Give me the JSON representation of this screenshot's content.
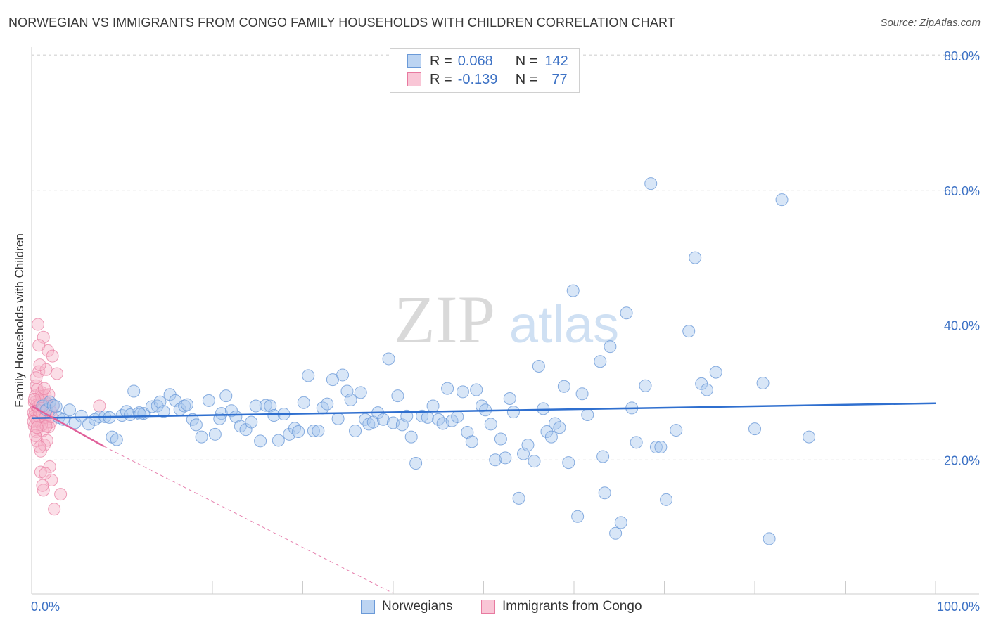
{
  "title": "NORWEGIAN VS IMMIGRANTS FROM CONGO FAMILY HOUSEHOLDS WITH CHILDREN CORRELATION CHART",
  "source": "Source: ZipAtlas.com",
  "watermark": {
    "zip": "ZIP",
    "atlas": "atlas"
  },
  "legend": {
    "rows": [
      {
        "r_label": "R =",
        "r_value": "0.068",
        "n_label": "N =",
        "n_value": "142"
      },
      {
        "r_label": "R =",
        "r_value": "-0.139",
        "n_label": "N =",
        "n_value": "77"
      }
    ]
  },
  "bottom_legend": [
    "Norwegians",
    "Immigrants from Congo"
  ],
  "colors": {
    "blue_fill": "#a9c8ee",
    "blue_stroke": "#6b9ad8",
    "blue_line": "#2f6fcf",
    "pink_fill": "#f6b6ca",
    "pink_stroke": "#e87aa0",
    "pink_line": "#e0609a",
    "axis_text": "#3d72c5",
    "grid": "#dddddd"
  },
  "chart_data": {
    "type": "scatter",
    "title": "NORWEGIAN VS IMMIGRANTS FROM CONGO FAMILY HOUSEHOLDS WITH CHILDREN CORRELATION CHART",
    "xlabel": "",
    "ylabel": "Family Households with Children",
    "xlim": [
      0,
      100
    ],
    "ylim": [
      0,
      80
    ],
    "x_tick_labels": [
      "0.0%",
      "100.0%"
    ],
    "y_ticks": [
      20,
      40,
      60,
      80
    ],
    "y_tick_labels": [
      "20.0%",
      "40.0%",
      "60.0%",
      "80.0%"
    ],
    "grid": true,
    "legend_position": "top-center",
    "series": [
      {
        "name": "Norwegians",
        "r": 0.068,
        "n": 142,
        "trend": {
          "x": [
            0,
            100
          ],
          "y": [
            26.2,
            28.4
          ]
        },
        "points": [
          [
            1.2,
            28.0
          ],
          [
            1.6,
            27.4
          ],
          [
            2.0,
            28.6
          ],
          [
            2.4,
            28.1
          ],
          [
            2.7,
            27.9
          ],
          [
            3.0,
            26.3
          ],
          [
            3.5,
            26.0
          ],
          [
            4.2,
            27.4
          ],
          [
            4.8,
            25.5
          ],
          [
            5.5,
            26.5
          ],
          [
            6.3,
            25.3
          ],
          [
            7.0,
            26.0
          ],
          [
            7.5,
            26.4
          ],
          [
            8.1,
            26.4
          ],
          [
            8.6,
            26.3
          ],
          [
            8.9,
            23.4
          ],
          [
            9.4,
            23.0
          ],
          [
            10.0,
            26.6
          ],
          [
            10.5,
            27.2
          ],
          [
            10.9,
            26.7
          ],
          [
            11.3,
            30.2
          ],
          [
            11.9,
            27.0
          ],
          [
            12.4,
            26.9
          ],
          [
            13.3,
            27.9
          ],
          [
            13.9,
            28.0
          ],
          [
            14.2,
            28.6
          ],
          [
            14.6,
            27.2
          ],
          [
            15.3,
            29.7
          ],
          [
            15.9,
            28.8
          ],
          [
            16.4,
            27.5
          ],
          [
            16.9,
            28.0
          ],
          [
            17.2,
            28.2
          ],
          [
            17.8,
            26.0
          ],
          [
            18.2,
            25.2
          ],
          [
            18.8,
            23.4
          ],
          [
            19.6,
            28.8
          ],
          [
            20.3,
            23.8
          ],
          [
            21.0,
            26.9
          ],
          [
            21.5,
            29.5
          ],
          [
            22.1,
            27.3
          ],
          [
            22.6,
            26.4
          ],
          [
            23.1,
            25.0
          ],
          [
            23.7,
            24.5
          ],
          [
            24.3,
            25.6
          ],
          [
            24.8,
            28.0
          ],
          [
            25.3,
            22.8
          ],
          [
            25.9,
            28.1
          ],
          [
            26.4,
            28.0
          ],
          [
            26.8,
            26.6
          ],
          [
            27.3,
            22.9
          ],
          [
            27.9,
            26.8
          ],
          [
            28.5,
            23.8
          ],
          [
            29.1,
            24.7
          ],
          [
            29.5,
            24.2
          ],
          [
            30.1,
            28.5
          ],
          [
            30.6,
            32.5
          ],
          [
            31.2,
            24.3
          ],
          [
            31.7,
            24.3
          ],
          [
            32.2,
            27.7
          ],
          [
            32.7,
            28.3
          ],
          [
            33.3,
            31.9
          ],
          [
            33.9,
            26.1
          ],
          [
            34.4,
            32.6
          ],
          [
            34.9,
            30.2
          ],
          [
            35.3,
            28.9
          ],
          [
            35.8,
            24.3
          ],
          [
            36.4,
            30.0
          ],
          [
            36.9,
            26.0
          ],
          [
            37.3,
            25.3
          ],
          [
            37.8,
            25.6
          ],
          [
            38.3,
            27.0
          ],
          [
            38.9,
            26.0
          ],
          [
            39.5,
            35.0
          ],
          [
            40.0,
            25.5
          ],
          [
            40.5,
            29.5
          ],
          [
            41.0,
            25.2
          ],
          [
            41.5,
            26.5
          ],
          [
            42.0,
            23.4
          ],
          [
            42.5,
            19.5
          ],
          [
            43.2,
            26.5
          ],
          [
            43.8,
            26.3
          ],
          [
            44.4,
            28.0
          ],
          [
            45.0,
            26.0
          ],
          [
            45.5,
            25.4
          ],
          [
            46.0,
            30.6
          ],
          [
            46.5,
            25.8
          ],
          [
            47.1,
            26.4
          ],
          [
            47.7,
            30.1
          ],
          [
            48.2,
            24.1
          ],
          [
            48.7,
            22.7
          ],
          [
            49.2,
            30.4
          ],
          [
            49.8,
            28.0
          ],
          [
            50.2,
            27.4
          ],
          [
            50.8,
            25.3
          ],
          [
            51.3,
            20.0
          ],
          [
            51.9,
            23.1
          ],
          [
            52.4,
            20.3
          ],
          [
            52.9,
            29.1
          ],
          [
            53.3,
            27.1
          ],
          [
            53.9,
            14.3
          ],
          [
            54.4,
            20.9
          ],
          [
            54.9,
            22.2
          ],
          [
            55.6,
            19.8
          ],
          [
            56.1,
            33.9
          ],
          [
            56.6,
            27.6
          ],
          [
            57.0,
            24.2
          ],
          [
            57.5,
            23.4
          ],
          [
            57.9,
            25.4
          ],
          [
            58.4,
            24.8
          ],
          [
            58.9,
            30.9
          ],
          [
            59.4,
            19.6
          ],
          [
            59.9,
            45.1
          ],
          [
            60.4,
            11.6
          ],
          [
            60.9,
            29.8
          ],
          [
            61.5,
            26.7
          ],
          [
            62.9,
            34.6
          ],
          [
            63.4,
            15.1
          ],
          [
            64.0,
            36.8
          ],
          [
            64.6,
            9.1
          ],
          [
            65.2,
            10.7
          ],
          [
            65.8,
            41.8
          ],
          [
            66.4,
            27.7
          ],
          [
            66.9,
            22.6
          ],
          [
            67.9,
            31.0
          ],
          [
            68.5,
            61.0
          ],
          [
            69.1,
            21.9
          ],
          [
            69.6,
            21.9
          ],
          [
            70.2,
            14.1
          ],
          [
            71.3,
            24.4
          ],
          [
            72.7,
            39.1
          ],
          [
            73.4,
            50.0
          ],
          [
            74.1,
            31.3
          ],
          [
            74.7,
            30.4
          ],
          [
            75.7,
            33.0
          ],
          [
            80.0,
            24.6
          ],
          [
            80.9,
            31.4
          ],
          [
            81.6,
            8.3
          ],
          [
            83.0,
            58.6
          ],
          [
            86.0,
            23.4
          ],
          [
            63.2,
            20.5
          ],
          [
            12.0,
            26.8
          ],
          [
            20.8,
            26.1
          ]
        ]
      },
      {
        "name": "Immigrants from Congo",
        "r": -0.139,
        "n": 77,
        "trend": {
          "x": [
            0,
            8
          ],
          "y": [
            28.0,
            22.0
          ]
        },
        "trend_dashed": {
          "x": [
            8,
            40
          ],
          "y": [
            22.0,
            0.2
          ]
        },
        "points": [
          [
            0.2,
            27.0
          ],
          [
            0.3,
            28.5
          ],
          [
            0.3,
            25.0
          ],
          [
            0.4,
            26.2
          ],
          [
            0.4,
            29.5
          ],
          [
            0.5,
            31.0
          ],
          [
            0.5,
            24.2
          ],
          [
            0.6,
            27.6
          ],
          [
            0.6,
            22.8
          ],
          [
            0.7,
            26.6
          ],
          [
            0.7,
            40.1
          ],
          [
            0.8,
            28.0
          ],
          [
            0.8,
            33.1
          ],
          [
            0.9,
            25.6
          ],
          [
            0.9,
            29.0
          ],
          [
            1.0,
            27.3
          ],
          [
            1.0,
            21.3
          ],
          [
            1.1,
            26.0
          ],
          [
            1.1,
            30.0
          ],
          [
            1.2,
            28.8
          ],
          [
            1.2,
            24.3
          ],
          [
            1.3,
            27.5
          ],
          [
            1.3,
            38.2
          ],
          [
            1.4,
            26.8
          ],
          [
            1.4,
            22.2
          ],
          [
            1.5,
            29.6
          ],
          [
            1.5,
            25.4
          ],
          [
            1.6,
            27.0
          ],
          [
            1.6,
            33.4
          ],
          [
            1.7,
            28.4
          ],
          [
            1.8,
            26.1
          ],
          [
            1.8,
            36.2
          ],
          [
            1.9,
            24.9
          ],
          [
            2.0,
            27.8
          ],
          [
            2.0,
            19.0
          ],
          [
            2.1,
            25.6
          ],
          [
            2.2,
            17.0
          ],
          [
            2.3,
            35.4
          ],
          [
            2.4,
            28.0
          ],
          [
            2.5,
            12.7
          ],
          [
            0.3,
            26.5
          ],
          [
            0.4,
            27.2
          ],
          [
            0.5,
            28.1
          ],
          [
            0.6,
            25.8
          ],
          [
            0.7,
            27.9
          ],
          [
            0.8,
            26.4
          ],
          [
            0.9,
            27.1
          ],
          [
            1.0,
            28.3
          ],
          [
            1.1,
            25.2
          ],
          [
            1.2,
            26.9
          ],
          [
            1.3,
            27.7
          ],
          [
            1.4,
            28.8
          ],
          [
            1.5,
            26.3
          ],
          [
            1.6,
            25.0
          ],
          [
            1.7,
            27.4
          ],
          [
            0.5,
            32.2
          ],
          [
            0.6,
            30.4
          ],
          [
            0.9,
            34.1
          ],
          [
            1.0,
            18.2
          ],
          [
            1.3,
            15.5
          ],
          [
            2.8,
            32.8
          ],
          [
            3.2,
            14.9
          ],
          [
            7.5,
            28.0
          ],
          [
            0.4,
            23.6
          ],
          [
            0.8,
            37.0
          ],
          [
            1.1,
            29.4
          ],
          [
            1.5,
            18.0
          ],
          [
            1.9,
            29.7
          ],
          [
            2.2,
            26.4
          ],
          [
            0.2,
            25.7
          ],
          [
            0.6,
            24.8
          ],
          [
            1.7,
            22.9
          ],
          [
            0.9,
            21.9
          ],
          [
            1.4,
            30.6
          ],
          [
            2.1,
            27.2
          ],
          [
            0.3,
            29.0
          ],
          [
            1.2,
            16.2
          ]
        ]
      }
    ]
  }
}
